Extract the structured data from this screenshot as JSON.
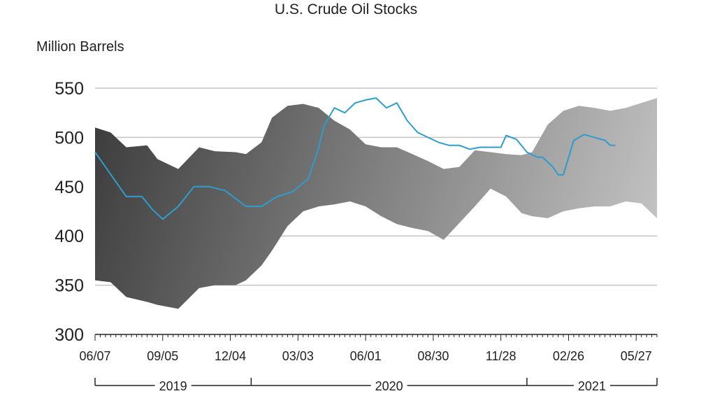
{
  "chart_data": {
    "type": "line",
    "title": "U.S. Crude Oil Stocks",
    "ylabel": "Million Barrels",
    "ylim": [
      300,
      550
    ],
    "yticks": [
      300,
      350,
      400,
      450,
      500,
      550
    ],
    "grid": true,
    "x_tick_labels": [
      "06/07",
      "09/05",
      "12/04",
      "03/03",
      "06/01",
      "08/30",
      "11/28",
      "02/26",
      "05/27"
    ],
    "x_tick_week_index": [
      0,
      13,
      26,
      39,
      52,
      65,
      78,
      91,
      104
    ],
    "year_labels": [
      {
        "label": "2019",
        "start_week": 0,
        "end_week": 30
      },
      {
        "label": "2020",
        "start_week": 30,
        "end_week": 83
      },
      {
        "label": "2021",
        "start_week": 83,
        "end_week": 108
      }
    ],
    "colors": {
      "series": "#2e9ccc",
      "band_dark": "#3c3c3c",
      "band_light": "#c6c6c6",
      "grid": "#c4c4c4"
    },
    "range_band": {
      "name": "",
      "week_index": [
        0,
        3,
        6,
        10,
        12,
        16,
        20,
        23,
        27,
        29,
        32,
        34,
        37,
        40,
        43,
        46,
        49,
        52,
        55,
        58,
        61,
        64,
        67,
        70,
        73,
        76,
        79,
        82,
        84,
        87,
        90,
        93,
        96,
        99,
        102,
        105,
        108
      ],
      "upper": [
        510,
        505,
        490,
        492,
        478,
        468,
        490,
        486,
        485,
        483,
        495,
        520,
        532,
        534,
        530,
        517,
        508,
        493,
        490,
        490,
        483,
        476,
        468,
        470,
        487,
        485,
        483,
        482,
        485,
        513,
        527,
        532,
        530,
        527,
        530,
        535,
        540
      ],
      "lower": [
        355,
        353,
        338,
        333,
        330,
        326,
        347,
        350,
        350,
        355,
        370,
        385,
        410,
        425,
        430,
        432,
        435,
        430,
        420,
        412,
        408,
        405,
        396,
        413,
        430,
        448,
        440,
        423,
        420,
        418,
        425,
        428,
        430,
        430,
        435,
        433,
        418
      ]
    },
    "series": [
      {
        "name": "",
        "week_index": [
          0,
          2,
          4,
          6,
          9,
          11,
          13,
          16,
          19,
          22,
          25,
          29,
          32,
          35,
          38,
          41,
          43,
          44,
          46,
          48,
          50,
          52,
          54,
          56,
          58,
          60,
          62,
          64,
          66,
          68,
          70,
          72,
          74,
          76,
          78,
          79,
          81,
          83,
          85,
          86,
          88,
          89,
          90,
          92,
          94,
          96,
          98,
          99,
          100
        ],
        "values": [
          485,
          470,
          455,
          440,
          440,
          427,
          417,
          430,
          450,
          450,
          446,
          430,
          430,
          440,
          445,
          458,
          490,
          512,
          530,
          525,
          535,
          538,
          540,
          530,
          535,
          517,
          505,
          500,
          495,
          492,
          492,
          488,
          490,
          490,
          490,
          502,
          498,
          485,
          480,
          480,
          470,
          462,
          462,
          497,
          503,
          500,
          497,
          492,
          492
        ]
      }
    ]
  }
}
